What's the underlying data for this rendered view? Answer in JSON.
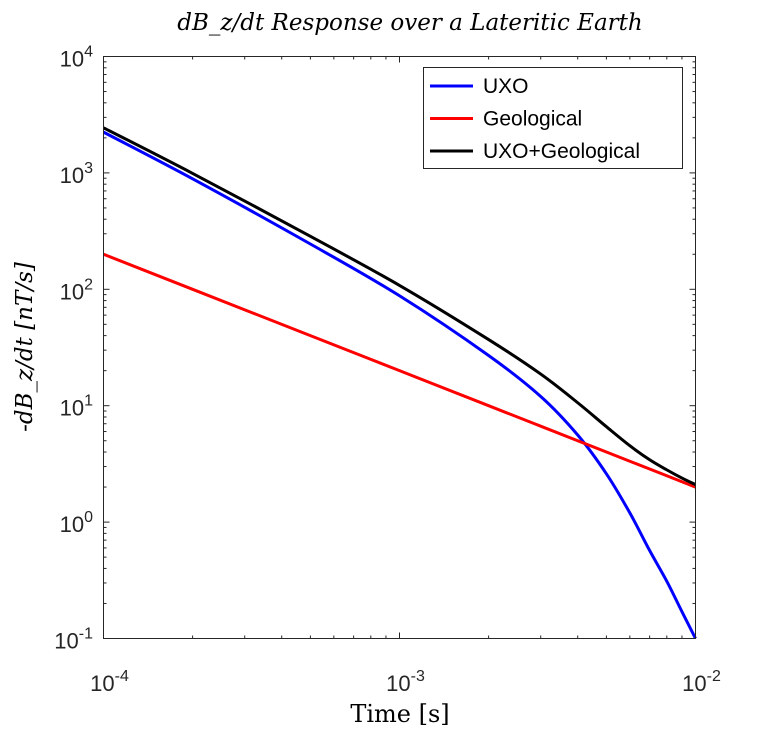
{
  "chart_data": {
    "type": "line",
    "title": "dB_z/dt Response over a Lateritic Earth",
    "xlabel": "Time [s]",
    "ylabel": "-dB_z/dt [nT/s]",
    "xscale": "log",
    "yscale": "log",
    "xlim": [
      0.0001,
      0.01
    ],
    "ylim": [
      0.1,
      10000
    ],
    "x_ticks": [
      {
        "value": 0.0001,
        "base": "10",
        "exp": "-4"
      },
      {
        "value": 0.001,
        "base": "10",
        "exp": "-3"
      },
      {
        "value": 0.01,
        "base": "10",
        "exp": "-2"
      }
    ],
    "y_ticks": [
      {
        "value": 0.1,
        "base": "10",
        "exp": "-1"
      },
      {
        "value": 1,
        "base": "10",
        "exp": "0"
      },
      {
        "value": 10,
        "base": "10",
        "exp": "1"
      },
      {
        "value": 100,
        "base": "10",
        "exp": "2"
      },
      {
        "value": 1000,
        "base": "10",
        "exp": "3"
      },
      {
        "value": 10000,
        "base": "10",
        "exp": "4"
      }
    ],
    "grid": false,
    "legend_position": "top-right",
    "x": [
      0.0001,
      0.0002,
      0.0005,
      0.001,
      0.002,
      0.003,
      0.004,
      0.005,
      0.006,
      0.007,
      0.008,
      0.009,
      0.01
    ],
    "series": [
      {
        "name": "UXO",
        "color": "#0000ff",
        "values": [
          2240,
          890,
          245,
          88,
          27,
          12,
          5.6,
          2.6,
          1.2,
          0.57,
          0.31,
          0.17,
          0.1
        ]
      },
      {
        "name": "Geological",
        "color": "#ff0000",
        "values": [
          200,
          100,
          40,
          20,
          10,
          6.67,
          5,
          4,
          3.33,
          2.86,
          2.5,
          2.22,
          2
        ]
      },
      {
        "name": "UXO+Geological",
        "color": "#000000",
        "values": [
          2440,
          990,
          285,
          108,
          37,
          18.7,
          10.6,
          6.6,
          4.53,
          3.43,
          2.81,
          2.39,
          2.1
        ]
      }
    ]
  }
}
